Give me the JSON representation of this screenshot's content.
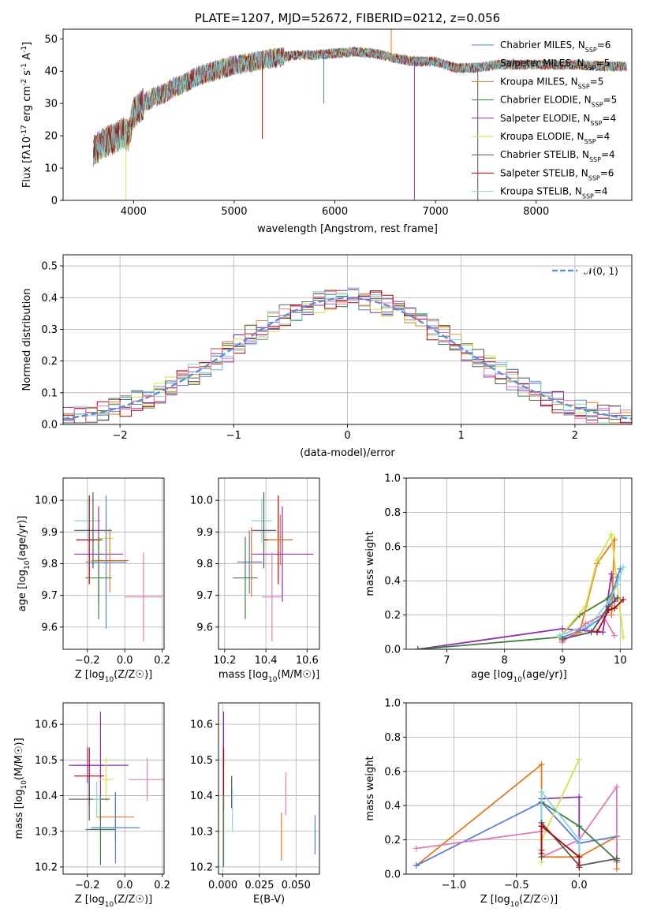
{
  "chart_data": [
    {
      "type": "line",
      "title": "PLATE=1207, MJD=52672, FIBERID=0212, z=0.056",
      "xlabel": "wavelength [Angstrom, rest frame]",
      "ylabel": "Flux [f_λ10^-17 erg cm^-2 s^-1 A^-1]",
      "xlim": [
        3300,
        8950
      ],
      "ylim": [
        0,
        53
      ],
      "xticks": [
        "4000",
        "5000",
        "6000",
        "7000",
        "8000"
      ],
      "yticks": [
        "0",
        "10",
        "20",
        "30",
        "40",
        "50"
      ],
      "grid": false,
      "legend_position": "top-right",
      "series": [
        {
          "name": "Chabrier MILES, N_SSP=6",
          "color": "#5b7fd6"
        },
        {
          "name": "Salpeter MILES, N_SSP=5",
          "color": "#6aa3c8"
        },
        {
          "name": "Kroupa MILES, N_SSP=5",
          "color": "#e07b22"
        },
        {
          "name": "Chabrier ELODIE, N_SSP=5",
          "color": "#3f7f3f"
        },
        {
          "name": "Salpeter ELODIE, N_SSP=4",
          "color": "#8e2fb0"
        },
        {
          "name": "Kroupa ELODIE, N_SSP=4",
          "color": "#d8e043"
        },
        {
          "name": "Chabrier STELIB, N_SSP=4",
          "color": "#555555"
        },
        {
          "name": "Salpeter STELIB, N_SSP=6",
          "color": "#b00000"
        },
        {
          "name": "Kroupa STELIB, N_SSP=4",
          "color": "#7fd9de"
        }
      ],
      "continuum": {
        "x": [
          3600,
          3700,
          3800,
          3900,
          3950,
          4000,
          4100,
          4200,
          4300,
          4400,
          4500,
          4600,
          4800,
          5000,
          5200,
          5400,
          5600,
          5800,
          6000,
          6200,
          6400,
          6600,
          6800,
          7000,
          7100,
          7200,
          7400,
          7600,
          7800,
          8000,
          8200,
          8400,
          8700,
          8900
        ],
        "y": [
          15,
          18,
          19,
          21,
          20,
          27,
          30,
          32,
          33,
          35,
          36,
          38,
          40,
          42,
          43,
          44,
          45,
          45,
          45.5,
          46,
          45.5,
          44,
          43,
          43,
          42,
          41,
          41,
          42,
          42,
          42,
          42,
          42,
          41.5,
          41.5
        ]
      },
      "spikes": [
        {
          "x": 3925,
          "y": 0
        },
        {
          "x": 5280,
          "y": 19
        },
        {
          "x": 5890,
          "y": 30
        },
        {
          "x": 6560,
          "y": 53
        },
        {
          "x": 6790,
          "y": 0
        },
        {
          "x": 7420,
          "y": 0
        }
      ]
    },
    {
      "type": "line",
      "xlabel": "(data-model)/error",
      "ylabel": "Normed distribution",
      "xlim": [
        -2.5,
        2.5
      ],
      "ylim": [
        0,
        0.535
      ],
      "xticks": [
        "−2",
        "−1",
        "0",
        "1",
        "2"
      ],
      "yticks": [
        "0.0",
        "0.1",
        "0.2",
        "0.3",
        "0.4",
        "0.5"
      ],
      "grid": true,
      "legend_position": "top-right",
      "legend": [
        "𝒩(0, 1)"
      ],
      "normal_curve": {
        "mean": 0,
        "sigma": 1,
        "color": "#5b8fd8"
      },
      "histogram_bin_width": 0.1,
      "histogram_colors": [
        "#5b7fd6",
        "#e07b22",
        "#3f7f3f",
        "#8e2fb0",
        "#d8e043",
        "#555555",
        "#b00000",
        "#7fd9de",
        "#e07bb5"
      ]
    },
    {
      "type": "scatter",
      "xlabel": "Z [log10(Z/Z☉)]",
      "ylabel": "age [log10(age/yr)]",
      "xlim": [
        -0.33,
        0.21
      ],
      "ylim": [
        9.53,
        10.07
      ],
      "xticks": [
        "−0.2",
        "0.0",
        "0.2"
      ],
      "yticks": [
        "9.6",
        "9.7",
        "9.8",
        "9.9",
        "10.0"
      ],
      "grid": true,
      "points": [
        {
          "x": -0.2,
          "y": 9.935,
          "xerr": 0.07,
          "yerr": 0.07,
          "color": "#7fd9de"
        },
        {
          "x": -0.17,
          "y": 9.905,
          "xerr": 0.1,
          "yerr": 0.12,
          "color": "#555555"
        },
        {
          "x": -0.19,
          "y": 9.875,
          "xerr": 0.07,
          "yerr": 0.14,
          "color": "#b00000"
        },
        {
          "x": -0.1,
          "y": 9.88,
          "xerr": 0.04,
          "yerr": 0.07,
          "color": "#d8e043"
        },
        {
          "x": -0.14,
          "y": 9.83,
          "xerr": 0.13,
          "yerr": 0.15,
          "color": "#8e2fb0"
        },
        {
          "x": -0.08,
          "y": 9.81,
          "xerr": 0.1,
          "yerr": 0.1,
          "color": "#e07b22"
        },
        {
          "x": -0.1,
          "y": 9.805,
          "xerr": 0.11,
          "yerr": 0.21,
          "color": "#5b7fd6"
        },
        {
          "x": -0.14,
          "y": 9.755,
          "xerr": 0.07,
          "yerr": 0.13,
          "color": "#3f7f3f"
        },
        {
          "x": 0.1,
          "y": 9.695,
          "xerr": 0.1,
          "yerr": 0.14,
          "color": "#e07bb5"
        }
      ]
    },
    {
      "type": "scatter",
      "xlabel": "mass [log10(M/M☉)]",
      "ylabel": "",
      "xlim": [
        10.17,
        10.66
      ],
      "ylim": [
        9.53,
        10.07
      ],
      "xticks": [
        "10.2",
        "10.4",
        "10.6"
      ],
      "yticks": [
        "9.6",
        "9.7",
        "9.8",
        "9.9",
        "10.0"
      ],
      "grid": true,
      "points": [
        {
          "x": 10.38,
          "y": 9.935,
          "xerr": 0.05,
          "yerr": 0.07,
          "color": "#7fd9de"
        },
        {
          "x": 10.39,
          "y": 9.905,
          "xerr": 0.06,
          "yerr": 0.12,
          "color": "#555555"
        },
        {
          "x": 10.46,
          "y": 9.875,
          "xerr": 0.07,
          "yerr": 0.14,
          "color": "#b00000"
        },
        {
          "x": 10.47,
          "y": 9.875,
          "xerr": 0.06,
          "yerr": 0.08,
          "color": "#e07b22"
        },
        {
          "x": 10.48,
          "y": 9.83,
          "xerr": 0.15,
          "yerr": 0.15,
          "color": "#8e2fb0"
        },
        {
          "x": 10.33,
          "y": 9.805,
          "xerr": 0.05,
          "yerr": 0.11,
          "color": "#e07b22"
        },
        {
          "x": 10.32,
          "y": 9.805,
          "xerr": 0.06,
          "yerr": 0.1,
          "color": "#5b7fd6"
        },
        {
          "x": 10.3,
          "y": 9.755,
          "xerr": 0.06,
          "yerr": 0.13,
          "color": "#3f7f3f"
        },
        {
          "x": 10.43,
          "y": 9.695,
          "xerr": 0.05,
          "yerr": 0.14,
          "color": "#e07bb5"
        }
      ]
    },
    {
      "type": "line",
      "xlabel": "age [log10(age/yr)]",
      "ylabel": "mass weight",
      "xlim": [
        6.3,
        10.2
      ],
      "ylim": [
        0,
        1.0
      ],
      "xticks": [
        "7",
        "8",
        "9",
        "10"
      ],
      "yticks": [
        "0.0",
        "0.2",
        "0.4",
        "0.6",
        "0.8",
        "1.0"
      ],
      "grid": true,
      "series": [
        {
          "color": "#8e2fb0",
          "x": [
            6.5,
            9.0,
            9.7,
            9.85,
            9.9
          ],
          "y": [
            0.0,
            0.12,
            0.1,
            0.44,
            0.28
          ]
        },
        {
          "color": "#3f7f3f",
          "x": [
            6.5,
            8.95,
            9.3,
            9.8,
            9.95
          ],
          "y": [
            0.0,
            0.07,
            0.2,
            0.3,
            0.38
          ]
        },
        {
          "color": "#e07b22",
          "x": [
            9.0,
            9.3,
            9.6,
            9.9,
            9.85
          ],
          "y": [
            0.05,
            0.1,
            0.5,
            0.64,
            0.2
          ]
        },
        {
          "color": "#d8e043",
          "x": [
            8.95,
            9.4,
            9.6,
            9.85,
            10.05
          ],
          "y": [
            0.07,
            0.25,
            0.52,
            0.67,
            0.07
          ]
        },
        {
          "color": "#5b7fd6",
          "x": [
            9.0,
            9.4,
            9.75,
            9.95,
            10.0
          ],
          "y": [
            0.07,
            0.12,
            0.2,
            0.42,
            0.47
          ]
        },
        {
          "color": "#7fd9de",
          "x": [
            8.95,
            9.5,
            9.8,
            9.95,
            10.05
          ],
          "y": [
            0.08,
            0.15,
            0.28,
            0.38,
            0.48
          ]
        },
        {
          "color": "#e07bb5",
          "x": [
            9.0,
            9.4,
            9.7,
            9.9
          ],
          "y": [
            0.04,
            0.15,
            0.2,
            0.08
          ]
        },
        {
          "color": "#555555",
          "x": [
            9.0,
            9.5,
            9.8,
            9.95
          ],
          "y": [
            0.06,
            0.1,
            0.25,
            0.3
          ]
        },
        {
          "color": "#b00000",
          "x": [
            9.6,
            9.8,
            9.9,
            10.05
          ],
          "y": [
            0.1,
            0.23,
            0.24,
            0.29
          ]
        }
      ]
    },
    {
      "type": "scatter",
      "xlabel": "Z [log10(Z/Z☉)]",
      "ylabel": "mass [log10(M/M☉)]",
      "xlim": [
        -0.33,
        0.21
      ],
      "ylim": [
        10.18,
        10.66
      ],
      "xticks": [
        "−0.2",
        "0.0",
        "0.2"
      ],
      "yticks": [
        "10.2",
        "10.3",
        "10.4",
        "10.5",
        "10.6"
      ],
      "grid": true,
      "points": [
        {
          "x": -0.2,
          "y": 10.485,
          "xerr": 0.1,
          "yerr": 0.05,
          "color": "#8e2fb0"
        },
        {
          "x": -0.13,
          "y": 10.485,
          "xerr": 0.15,
          "yerr": 0.15,
          "color": "#8e2fb0"
        },
        {
          "x": -0.19,
          "y": 10.455,
          "xerr": 0.08,
          "yerr": 0.08,
          "color": "#b00000"
        },
        {
          "x": -0.1,
          "y": 10.445,
          "xerr": 0.04,
          "yerr": 0.06,
          "color": "#d8e043"
        },
        {
          "x": 0.12,
          "y": 10.445,
          "xerr": 0.1,
          "yerr": 0.06,
          "color": "#e07bb5"
        },
        {
          "x": -0.19,
          "y": 10.39,
          "xerr": 0.11,
          "yerr": 0.06,
          "color": "#555555"
        },
        {
          "x": -0.05,
          "y": 10.34,
          "xerr": 0.1,
          "yerr": 0.07,
          "color": "#e07b22"
        },
        {
          "x": -0.13,
          "y": 10.305,
          "xerr": 0.08,
          "yerr": 0.1,
          "color": "#3f7f3f"
        },
        {
          "x": -0.05,
          "y": 10.31,
          "xerr": 0.13,
          "yerr": 0.1,
          "color": "#5b7fd6"
        },
        {
          "x": -0.15,
          "y": 10.39,
          "xerr": 0.02,
          "yerr": 0.05,
          "color": "#7fd9de"
        }
      ]
    },
    {
      "type": "scatter",
      "xlabel": "E(B-V)",
      "ylabel": "",
      "xlim": [
        -0.003,
        0.066
      ],
      "ylim": [
        10.18,
        10.66
      ],
      "xticks": [
        "0.000",
        "0.025",
        "0.050"
      ],
      "yticks": [
        "10.2",
        "10.3",
        "10.4",
        "10.5",
        "10.6"
      ],
      "grid": true,
      "points": [
        {
          "x": 0.0005,
          "y": 10.56,
          "yerr": 0.075,
          "color": "#8e2fb0"
        },
        {
          "x": 0.0005,
          "y": 10.445,
          "yerr": 0.09,
          "color": "#b00000"
        },
        {
          "x": 0.0005,
          "y": 10.3,
          "yerr": 0.1,
          "color": "#3f7f3f"
        },
        {
          "x": 0.006,
          "y": 10.41,
          "yerr": 0.045,
          "color": "#555555"
        },
        {
          "x": 0.0065,
          "y": 10.36,
          "yerr": 0.06,
          "color": "#7fd9de"
        },
        {
          "x": 0.04,
          "y": 10.285,
          "yerr": 0.067,
          "color": "#e07b22"
        },
        {
          "x": 0.043,
          "y": 10.405,
          "yerr": 0.06,
          "color": "#e07bb5"
        },
        {
          "x": 0.063,
          "y": 10.29,
          "yerr": 0.055,
          "color": "#5b7fd6"
        }
      ]
    },
    {
      "type": "line",
      "xlabel": "Z [log10(Z/Z☉)]",
      "ylabel": "mass weight",
      "xlim": [
        -1.38,
        0.42
      ],
      "ylim": [
        0,
        1.0
      ],
      "xticks": [
        "−1.0",
        "−0.5",
        "0.0"
      ],
      "yticks": [
        "0.0",
        "0.2",
        "0.4",
        "0.6",
        "0.8",
        "1.0"
      ],
      "grid": true,
      "series": [
        {
          "color": "#e07b22",
          "x": [
            -1.3,
            -0.3,
            -0.3,
            0.0,
            0.3,
            0.3
          ],
          "y": [
            0.05,
            0.64,
            0.1,
            0.1,
            0.22,
            0.03
          ]
        },
        {
          "color": "#5b7fd6",
          "x": [
            -1.3,
            -0.3,
            0.0,
            0.3,
            0.3
          ],
          "y": [
            0.05,
            0.42,
            0.18,
            0.22,
            0.07
          ]
        },
        {
          "color": "#e07bb5",
          "x": [
            -1.3,
            -0.3,
            -0.3,
            0.0,
            0.3,
            0.3
          ],
          "y": [
            0.15,
            0.25,
            0.1,
            0.2,
            0.51,
            0.07
          ]
        },
        {
          "color": "#8e2fb0",
          "x": [
            -0.3,
            -0.3,
            0.0,
            0.0
          ],
          "y": [
            0.28,
            0.44,
            0.45,
            0.1
          ]
        },
        {
          "color": "#d8e043",
          "x": [
            -0.3,
            -0.3,
            0.0
          ],
          "y": [
            0.07,
            0.2,
            0.67
          ]
        },
        {
          "color": "#3f7f3f",
          "x": [
            -0.3,
            -0.3,
            0.0,
            0.3,
            0.3
          ],
          "y": [
            0.14,
            0.42,
            0.28,
            0.08,
            0.09
          ]
        },
        {
          "color": "#7fd9de",
          "x": [
            -0.3,
            -0.3,
            0.0,
            0.0
          ],
          "y": [
            0.1,
            0.48,
            0.2,
            0.07
          ]
        },
        {
          "color": "#555555",
          "x": [
            -0.3,
            -0.3,
            0.0,
            0.3
          ],
          "y": [
            0.1,
            0.3,
            0.05,
            0.09
          ]
        },
        {
          "color": "#b00000",
          "x": [
            -0.3,
            -0.3,
            0.0,
            0.0
          ],
          "y": [
            0.12,
            0.28,
            0.1,
            0.04
          ]
        }
      ]
    }
  ]
}
